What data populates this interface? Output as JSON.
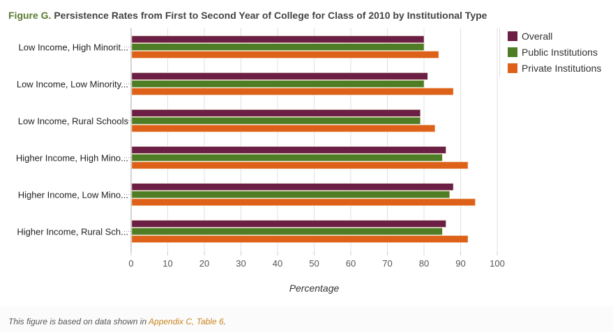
{
  "title": {
    "prefix": "Figure G.",
    "text": "Persistence Rates from First to Second Year of College for Class of 2010 by Institutional Type"
  },
  "footnote": {
    "text": "This figure is based on data shown in ",
    "link": "Appendix C, Table 6",
    "suffix": "."
  },
  "chart_data": {
    "type": "bar",
    "orientation": "horizontal",
    "title": "Persistence Rates from First to Second Year of College for Class of 2010 by Institutional Type",
    "xlabel": "Percentage",
    "ylabel": "",
    "xlim": [
      0,
      100
    ],
    "ticks": [
      "0",
      "10",
      "20",
      "30",
      "40",
      "50",
      "60",
      "70",
      "80",
      "90",
      "100"
    ],
    "grid": true,
    "legend_position": "top-right",
    "categories": [
      "Low Income, High Minorit...",
      "Low Income, Low Minority...",
      "Low Income, Rural Schools",
      "Higher Income, High Mino...",
      "Higher Income, Low Mino...",
      "Higher Income, Rural Sch..."
    ],
    "series": [
      {
        "name": "Overall",
        "color": "#6b1f45",
        "values": [
          80,
          81,
          79,
          86,
          88,
          86
        ]
      },
      {
        "name": "Public Institutions",
        "color": "#4e7d26",
        "values": [
          80,
          80,
          79,
          85,
          87,
          85
        ]
      },
      {
        "name": "Private Institutions",
        "color": "#dd6119",
        "values": [
          84,
          88,
          83,
          92,
          94,
          92
        ]
      }
    ]
  }
}
